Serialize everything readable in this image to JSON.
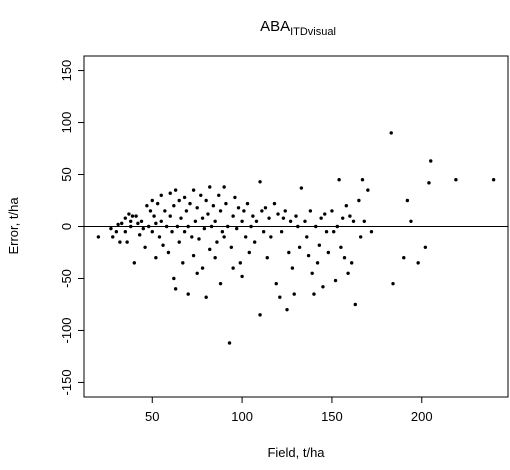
{
  "chart_data": {
    "type": "scatter",
    "title": "ABA",
    "title_subscript": "ITDvisual",
    "xlabel": "Field, t/ha",
    "ylabel": "Error, t/ha",
    "xlim": [
      12,
      248
    ],
    "ylim": [
      -164,
      164
    ],
    "x_ticks": [
      50,
      100,
      150,
      200
    ],
    "y_ticks": [
      -150,
      -100,
      -50,
      0,
      50,
      100,
      150
    ],
    "reference_line_y": 0,
    "grid": false,
    "legend": "none",
    "point_color": "#000000",
    "series": [
      {
        "points": [
          [
            20,
            -10
          ],
          [
            27,
            -2
          ],
          [
            28,
            -10
          ],
          [
            30,
            -5
          ],
          [
            31,
            2
          ],
          [
            32,
            -15
          ],
          [
            33,
            3
          ],
          [
            35,
            -5
          ],
          [
            35,
            8
          ],
          [
            36,
            -15
          ],
          [
            37,
            12
          ],
          [
            38,
            5
          ],
          [
            38,
            0
          ],
          [
            39,
            10
          ],
          [
            40,
            -35
          ],
          [
            41,
            10
          ],
          [
            42,
            3
          ],
          [
            43,
            -8
          ],
          [
            44,
            5
          ],
          [
            45,
            -2
          ],
          [
            46,
            -20
          ],
          [
            47,
            20
          ],
          [
            48,
            0
          ],
          [
            49,
            15
          ],
          [
            50,
            -5
          ],
          [
            50,
            25
          ],
          [
            51,
            10
          ],
          [
            52,
            -30
          ],
          [
            52,
            3
          ],
          [
            53,
            22
          ],
          [
            54,
            -10
          ],
          [
            55,
            30
          ],
          [
            55,
            5
          ],
          [
            56,
            -18
          ],
          [
            57,
            15
          ],
          [
            58,
            0
          ],
          [
            59,
            -25
          ],
          [
            60,
            32
          ],
          [
            60,
            10
          ],
          [
            61,
            -5
          ],
          [
            62,
            -50
          ],
          [
            62,
            20
          ],
          [
            63,
            -60
          ],
          [
            63,
            35
          ],
          [
            64,
            0
          ],
          [
            65,
            25
          ],
          [
            65,
            -15
          ],
          [
            66,
            8
          ],
          [
            67,
            -35
          ],
          [
            68,
            28
          ],
          [
            68,
            -5
          ],
          [
            69,
            15
          ],
          [
            70,
            -65
          ],
          [
            70,
            0
          ],
          [
            71,
            22
          ],
          [
            72,
            -10
          ],
          [
            73,
            -28
          ],
          [
            73,
            35
          ],
          [
            74,
            5
          ],
          [
            75,
            -45
          ],
          [
            75,
            18
          ],
          [
            76,
            -12
          ],
          [
            77,
            30
          ],
          [
            78,
            -40
          ],
          [
            78,
            8
          ],
          [
            79,
            -2
          ],
          [
            80,
            25
          ],
          [
            80,
            -68
          ],
          [
            81,
            12
          ],
          [
            82,
            -22
          ],
          [
            82,
            38
          ],
          [
            83,
            0
          ],
          [
            84,
            20
          ],
          [
            85,
            -30
          ],
          [
            85,
            5
          ],
          [
            86,
            -15
          ],
          [
            87,
            30
          ],
          [
            88,
            -55
          ],
          [
            88,
            15
          ],
          [
            89,
            -5
          ],
          [
            90,
            38
          ],
          [
            90,
            -10
          ],
          [
            91,
            22
          ],
          [
            92,
            0
          ],
          [
            93,
            -112
          ],
          [
            94,
            -20
          ],
          [
            95,
            10
          ],
          [
            95,
            -40
          ],
          [
            96,
            28
          ],
          [
            97,
            -2
          ],
          [
            98,
            18
          ],
          [
            99,
            -35
          ],
          [
            100,
            5
          ],
          [
            100,
            -48
          ],
          [
            101,
            15
          ],
          [
            102,
            -10
          ],
          [
            103,
            22
          ],
          [
            104,
            -25
          ],
          [
            105,
            0
          ],
          [
            106,
            10
          ],
          [
            107,
            -15
          ],
          [
            108,
            5
          ],
          [
            110,
            43
          ],
          [
            110,
            -85
          ],
          [
            111,
            15
          ],
          [
            112,
            -5
          ],
          [
            113,
            18
          ],
          [
            114,
            -30
          ],
          [
            115,
            8
          ],
          [
            116,
            -10
          ],
          [
            118,
            22
          ],
          [
            119,
            -55
          ],
          [
            120,
            12
          ],
          [
            121,
            -68
          ],
          [
            122,
            -5
          ],
          [
            123,
            8
          ],
          [
            124,
            15
          ],
          [
            125,
            -80
          ],
          [
            126,
            -25
          ],
          [
            127,
            5
          ],
          [
            128,
            -40
          ],
          [
            129,
            -65
          ],
          [
            130,
            10
          ],
          [
            131,
            0
          ],
          [
            132,
            -20
          ],
          [
            133,
            37
          ],
          [
            135,
            5
          ],
          [
            136,
            -10
          ],
          [
            137,
            -28
          ],
          [
            138,
            15
          ],
          [
            139,
            -45
          ],
          [
            140,
            -65
          ],
          [
            141,
            0
          ],
          [
            142,
            -35
          ],
          [
            143,
            -18
          ],
          [
            144,
            8
          ],
          [
            145,
            -58
          ],
          [
            146,
            12
          ],
          [
            147,
            -5
          ],
          [
            148,
            -25
          ],
          [
            150,
            15
          ],
          [
            151,
            -5
          ],
          [
            152,
            -52
          ],
          [
            153,
            0
          ],
          [
            154,
            45
          ],
          [
            155,
            -20
          ],
          [
            156,
            8
          ],
          [
            157,
            -30
          ],
          [
            158,
            20
          ],
          [
            159,
            -45
          ],
          [
            160,
            10
          ],
          [
            161,
            -35
          ],
          [
            162,
            5
          ],
          [
            163,
            -75
          ],
          [
            165,
            25
          ],
          [
            166,
            -10
          ],
          [
            167,
            45
          ],
          [
            168,
            5
          ],
          [
            170,
            35
          ],
          [
            172,
            -5
          ],
          [
            183,
            90
          ],
          [
            184,
            -55
          ],
          [
            190,
            -30
          ],
          [
            192,
            25
          ],
          [
            194,
            5
          ],
          [
            198,
            -35
          ],
          [
            202,
            -20
          ],
          [
            204,
            42
          ],
          [
            205,
            63
          ],
          [
            219,
            45
          ],
          [
            240,
            45
          ]
        ]
      }
    ]
  }
}
